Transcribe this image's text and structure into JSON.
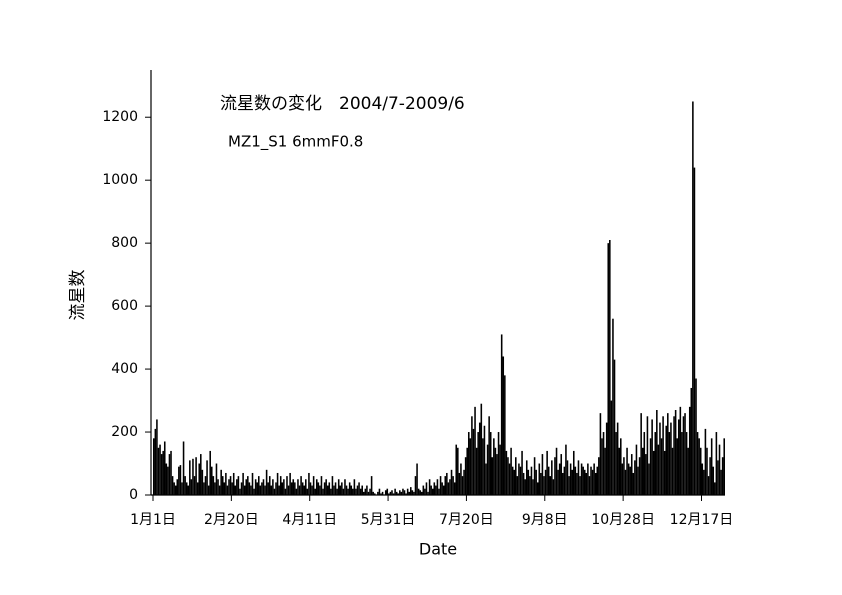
{
  "chart_data": {
    "type": "bar",
    "title": "流星数の変化　2004/7-2009/6",
    "subtitle": "MZ1_S1 6mmF0.8",
    "x_label": "Date",
    "y_label": "流星数",
    "color": "#000000",
    "xlim": [
      1,
      366
    ],
    "xticks": [
      {
        "value": 1,
        "label": "1月1日"
      },
      {
        "value": 51,
        "label": "2月20日"
      },
      {
        "value": 101,
        "label": "4月11日"
      },
      {
        "value": 151,
        "label": "5月31日"
      },
      {
        "value": 201,
        "label": "7月20日"
      },
      {
        "value": 251,
        "label": "9月8日"
      },
      {
        "value": 301,
        "label": "10月28日"
      },
      {
        "value": 351,
        "label": "12月17日"
      }
    ],
    "ylim": [
      0,
      1350
    ],
    "yticks": [
      0,
      200,
      400,
      600,
      800,
      1000,
      1200
    ],
    "x": [
      1,
      2,
      3,
      4,
      5,
      6,
      7,
      8,
      9,
      10,
      11,
      12,
      13,
      14,
      15,
      16,
      17,
      18,
      19,
      20,
      21,
      22,
      23,
      24,
      25,
      26,
      27,
      28,
      29,
      30,
      31,
      32,
      33,
      34,
      35,
      36,
      37,
      38,
      39,
      40,
      41,
      42,
      43,
      44,
      45,
      46,
      47,
      48,
      49,
      50,
      51,
      52,
      53,
      54,
      55,
      56,
      57,
      58,
      59,
      60,
      61,
      62,
      63,
      64,
      65,
      66,
      67,
      68,
      69,
      70,
      71,
      72,
      73,
      74,
      75,
      76,
      77,
      78,
      79,
      80,
      81,
      82,
      83,
      84,
      85,
      86,
      87,
      88,
      89,
      90,
      91,
      92,
      93,
      94,
      95,
      96,
      97,
      98,
      99,
      100,
      101,
      102,
      103,
      104,
      105,
      106,
      107,
      108,
      109,
      110,
      111,
      112,
      113,
      114,
      115,
      116,
      117,
      118,
      119,
      120,
      121,
      122,
      123,
      124,
      125,
      126,
      127,
      128,
      129,
      130,
      131,
      132,
      133,
      134,
      135,
      136,
      137,
      138,
      139,
      140,
      141,
      142,
      143,
      144,
      145,
      146,
      147,
      148,
      149,
      150,
      151,
      152,
      153,
      154,
      155,
      156,
      157,
      158,
      159,
      160,
      161,
      162,
      163,
      164,
      165,
      166,
      167,
      168,
      169,
      170,
      171,
      172,
      173,
      174,
      175,
      176,
      177,
      178,
      179,
      180,
      181,
      182,
      183,
      184,
      185,
      186,
      187,
      188,
      189,
      190,
      191,
      192,
      193,
      194,
      195,
      196,
      197,
      198,
      199,
      200,
      201,
      202,
      203,
      204,
      205,
      206,
      207,
      208,
      209,
      210,
      211,
      212,
      213,
      214,
      215,
      216,
      217,
      218,
      219,
      220,
      221,
      222,
      223,
      224,
      225,
      226,
      227,
      228,
      229,
      230,
      231,
      232,
      233,
      234,
      235,
      236,
      237,
      238,
      239,
      240,
      241,
      242,
      243,
      244,
      245,
      246,
      247,
      248,
      249,
      250,
      251,
      252,
      253,
      254,
      255,
      256,
      257,
      258,
      259,
      260,
      261,
      262,
      263,
      264,
      265,
      266,
      267,
      268,
      269,
      270,
      271,
      272,
      273,
      274,
      275,
      276,
      277,
      278,
      279,
      280,
      281,
      282,
      283,
      284,
      285,
      286,
      287,
      288,
      289,
      290,
      291,
      292,
      293,
      294,
      295,
      296,
      297,
      298,
      299,
      300,
      301,
      302,
      303,
      304,
      305,
      306,
      307,
      308,
      309,
      310,
      311,
      312,
      313,
      314,
      315,
      316,
      317,
      318,
      319,
      320,
      321,
      322,
      323,
      324,
      325,
      326,
      327,
      328,
      329,
      330,
      331,
      332,
      333,
      334,
      335,
      336,
      337,
      338,
      339,
      340,
      341,
      342,
      343,
      344,
      345,
      346,
      347,
      348,
      349,
      350,
      351,
      352,
      353,
      354,
      355,
      356,
      357,
      358,
      359,
      360,
      361,
      362,
      363,
      364,
      365
    ],
    "values": [
      180,
      210,
      240,
      150,
      160,
      130,
      140,
      170,
      100,
      90,
      130,
      140,
      60,
      40,
      30,
      50,
      90,
      95,
      40,
      170,
      60,
      40,
      30,
      110,
      50,
      115,
      60,
      120,
      40,
      100,
      130,
      80,
      40,
      60,
      110,
      30,
      140,
      90,
      60,
      40,
      100,
      50,
      30,
      80,
      60,
      40,
      70,
      30,
      50,
      60,
      40,
      70,
      30,
      50,
      60,
      20,
      40,
      70,
      30,
      50,
      60,
      40,
      30,
      70,
      20,
      50,
      40,
      60,
      30,
      40,
      50,
      30,
      80,
      40,
      60,
      30,
      50,
      20,
      40,
      70,
      30,
      60,
      40,
      50,
      20,
      60,
      30,
      70,
      40,
      50,
      40,
      20,
      50,
      30,
      60,
      40,
      30,
      50,
      20,
      70,
      40,
      30,
      60,
      20,
      50,
      40,
      30,
      60,
      20,
      40,
      50,
      30,
      40,
      20,
      60,
      30,
      40,
      20,
      50,
      30,
      40,
      20,
      50,
      30,
      20,
      40,
      30,
      20,
      50,
      20,
      30,
      40,
      20,
      30,
      10,
      20,
      30,
      10,
      20,
      60,
      10,
      5,
      0,
      10,
      20,
      5,
      10,
      0,
      15,
      20,
      5,
      10,
      15,
      5,
      20,
      10,
      5,
      15,
      10,
      20,
      15,
      5,
      20,
      10,
      25,
      15,
      10,
      60,
      100,
      20,
      15,
      10,
      30,
      20,
      40,
      10,
      50,
      30,
      20,
      40,
      30,
      50,
      20,
      60,
      40,
      30,
      60,
      70,
      40,
      50,
      80,
      60,
      40,
      160,
      150,
      70,
      100,
      60,
      80,
      120,
      150,
      200,
      180,
      250,
      210,
      280,
      150,
      200,
      230,
      290,
      180,
      220,
      100,
      160,
      250,
      200,
      120,
      180,
      150,
      130,
      200,
      160,
      510,
      440,
      380,
      140,
      120,
      100,
      150,
      90,
      80,
      120,
      60,
      100,
      90,
      140,
      70,
      50,
      110,
      80,
      60,
      90,
      50,
      120,
      80,
      40,
      100,
      70,
      130,
      60,
      80,
      140,
      90,
      60,
      110,
      50,
      120,
      150,
      80,
      100,
      130,
      70,
      90,
      160,
      110,
      60,
      100,
      80,
      140,
      90,
      70,
      110,
      60,
      100,
      90,
      80,
      70,
      100,
      60,
      90,
      80,
      100,
      70,
      90,
      120,
      260,
      180,
      200,
      150,
      230,
      800,
      810,
      300,
      560,
      430,
      200,
      230,
      150,
      180,
      100,
      120,
      80,
      150,
      100,
      90,
      130,
      70,
      110,
      160,
      90,
      120,
      260,
      150,
      200,
      130,
      250,
      100,
      180,
      240,
      140,
      200,
      270,
      160,
      230,
      180,
      250,
      140,
      220,
      260,
      200,
      230,
      150,
      250,
      270,
      180,
      240,
      280,
      200,
      250,
      260,
      200,
      150,
      280,
      340,
      1250,
      1040,
      370,
      200,
      180,
      150,
      100,
      80,
      210,
      150,
      60,
      120,
      180,
      90,
      40,
      200,
      110,
      160,
      80,
      120,
      180
    ]
  }
}
